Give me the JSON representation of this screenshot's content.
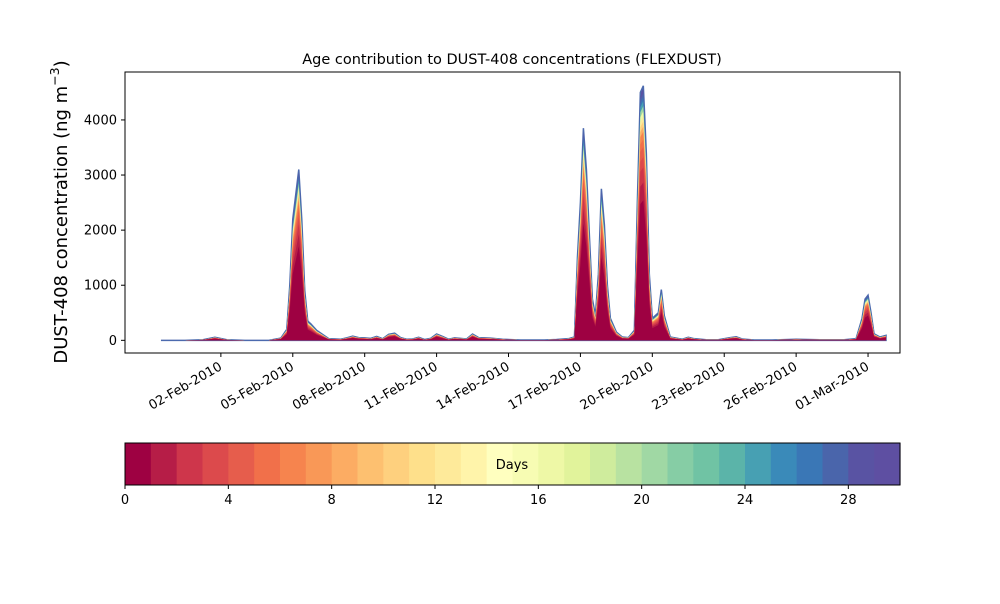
{
  "chart_data": {
    "type": "area",
    "title": "Age contribution to DUST-408 concentrations (FLEXDUST)",
    "ylabel": "DUST-408 concentration (ng m",
    "ylabel_sup": "−3",
    "ylabel_close": ")",
    "ylim": [
      -230,
      4870
    ],
    "yticks": [
      0,
      1000,
      2000,
      3000,
      4000
    ],
    "xlim": [
      "2010-01-29T00:00",
      "2010-03-02T08:00"
    ],
    "xticks": [
      "02-Feb-2010",
      "05-Feb-2010",
      "08-Feb-2010",
      "11-Feb-2010",
      "14-Feb-2010",
      "17-Feb-2010",
      "20-Feb-2010",
      "23-Feb-2010",
      "26-Feb-2010",
      "01-Mar-2010"
    ],
    "xtick_dates": [
      "2010-02-02",
      "2010-02-05",
      "2010-02-08",
      "2010-02-11",
      "2010-02-14",
      "2010-02-17",
      "2010-02-20",
      "2010-02-23",
      "2010-02-26",
      "2010-03-01"
    ],
    "grid": false,
    "series": [
      {
        "colorscale_days": 30,
        "points": [
          [
            "2010-01-30T12:00",
            0
          ],
          [
            "2010-01-31T12:00",
            0
          ],
          [
            "2010-02-01T06:00",
            10
          ],
          [
            "2010-02-01T18:00",
            55
          ],
          [
            "2010-02-02T06:00",
            10
          ],
          [
            "2010-02-03T00:00",
            0
          ],
          [
            "2010-02-04T00:00",
            0
          ],
          [
            "2010-02-04T12:00",
            40
          ],
          [
            "2010-02-04T18:00",
            200
          ],
          [
            "2010-02-04T21:00",
            1000
          ],
          [
            "2010-02-05T00:00",
            2200
          ],
          [
            "2010-02-05T06:00",
            3100
          ],
          [
            "2010-02-05T09:00",
            2200
          ],
          [
            "2010-02-05T12:00",
            900
          ],
          [
            "2010-02-05T15:00",
            350
          ],
          [
            "2010-02-05T18:00",
            300
          ],
          [
            "2010-02-06T00:00",
            180
          ],
          [
            "2010-02-06T12:00",
            30
          ],
          [
            "2010-02-07T00:00",
            20
          ],
          [
            "2010-02-07T06:00",
            45
          ],
          [
            "2010-02-07T12:00",
            75
          ],
          [
            "2010-02-07T18:00",
            50
          ],
          [
            "2010-02-08T00:00",
            45
          ],
          [
            "2010-02-08T06:00",
            35
          ],
          [
            "2010-02-08T12:00",
            70
          ],
          [
            "2010-02-08T18:00",
            30
          ],
          [
            "2010-02-09T00:00",
            110
          ],
          [
            "2010-02-09T06:00",
            130
          ],
          [
            "2010-02-09T12:00",
            50
          ],
          [
            "2010-02-09T18:00",
            20
          ],
          [
            "2010-02-10T00:00",
            25
          ],
          [
            "2010-02-10T06:00",
            55
          ],
          [
            "2010-02-10T12:00",
            15
          ],
          [
            "2010-02-10T18:00",
            35
          ],
          [
            "2010-02-11T00:00",
            115
          ],
          [
            "2010-02-11T06:00",
            70
          ],
          [
            "2010-02-11T12:00",
            20
          ],
          [
            "2010-02-11T18:00",
            45
          ],
          [
            "2010-02-12T00:00",
            35
          ],
          [
            "2010-02-12T06:00",
            25
          ],
          [
            "2010-02-12T12:00",
            115
          ],
          [
            "2010-02-12T18:00",
            50
          ],
          [
            "2010-02-13T06:00",
            40
          ],
          [
            "2010-02-13T18:00",
            20
          ],
          [
            "2010-02-14T12:00",
            5
          ],
          [
            "2010-02-15T12:00",
            5
          ],
          [
            "2010-02-16T00:00",
            15
          ],
          [
            "2010-02-16T12:00",
            30
          ],
          [
            "2010-02-16T18:00",
            60
          ],
          [
            "2010-02-16T21:00",
            1500
          ],
          [
            "2010-02-17T00:00",
            2500
          ],
          [
            "2010-02-17T03:00",
            3850
          ],
          [
            "2010-02-17T06:00",
            3100
          ],
          [
            "2010-02-17T09:00",
            1900
          ],
          [
            "2010-02-17T12:00",
            750
          ],
          [
            "2010-02-17T15:00",
            450
          ],
          [
            "2010-02-17T18:00",
            1200
          ],
          [
            "2010-02-17T21:00",
            2750
          ],
          [
            "2010-02-18T00:00",
            2100
          ],
          [
            "2010-02-18T03:00",
            1000
          ],
          [
            "2010-02-18T06:00",
            400
          ],
          [
            "2010-02-18T12:00",
            150
          ],
          [
            "2010-02-18T18:00",
            60
          ],
          [
            "2010-02-19T00:00",
            50
          ],
          [
            "2010-02-19T06:00",
            180
          ],
          [
            "2010-02-19T09:00",
            2500
          ],
          [
            "2010-02-19T12:00",
            4500
          ],
          [
            "2010-02-19T15:00",
            4620
          ],
          [
            "2010-02-19T18:00",
            3400
          ],
          [
            "2010-02-19T21:00",
            1200
          ],
          [
            "2010-02-20T00:00",
            400
          ],
          [
            "2010-02-20T06:00",
            500
          ],
          [
            "2010-02-20T09:00",
            920
          ],
          [
            "2010-02-20T12:00",
            450
          ],
          [
            "2010-02-20T18:00",
            60
          ],
          [
            "2010-02-21T06:00",
            20
          ],
          [
            "2010-02-21T12:00",
            55
          ],
          [
            "2010-02-21T18:00",
            30
          ],
          [
            "2010-02-22T06:00",
            10
          ],
          [
            "2010-02-22T18:00",
            10
          ],
          [
            "2010-02-23T06:00",
            50
          ],
          [
            "2010-02-23T12:00",
            65
          ],
          [
            "2010-02-23T18:00",
            25
          ],
          [
            "2010-02-24T06:00",
            5
          ],
          [
            "2010-02-25T00:00",
            5
          ],
          [
            "2010-02-26T00:00",
            20
          ],
          [
            "2010-02-27T00:00",
            10
          ],
          [
            "2010-02-28T00:00",
            10
          ],
          [
            "2010-02-28T12:00",
            30
          ],
          [
            "2010-02-28T18:00",
            400
          ],
          [
            "2010-02-28T21:00",
            750
          ],
          [
            "2010-03-01T00:00",
            820
          ],
          [
            "2010-03-01T03:00",
            500
          ],
          [
            "2010-03-01T06:00",
            120
          ],
          [
            "2010-03-01T12:00",
            60
          ],
          [
            "2010-03-01T18:00",
            90
          ]
        ]
      }
    ],
    "colorbar": {
      "label": "Days",
      "min": 0,
      "max": 30,
      "ticks": [
        0,
        4,
        8,
        12,
        16,
        20,
        24,
        28
      ],
      "colors": [
        "#9e0142",
        "#b61d47",
        "#ce364b",
        "#dc4a4c",
        "#e65d4c",
        "#f1704a",
        "#f6844e",
        "#f99857",
        "#fcac63",
        "#fdc070",
        "#fed07e",
        "#fee08b",
        "#feea9a",
        "#fff4aa",
        "#ffffbf",
        "#f7fcb3",
        "#eef8a6",
        "#e1f39b",
        "#cfec9d",
        "#b8e2a1",
        "#a0d8a4",
        "#86cda5",
        "#70c3a4",
        "#5bb4a9",
        "#47a0b3",
        "#3a8ab9",
        "#3a77b6",
        "#4a65ab",
        "#5953a3",
        "#5e4fa2"
      ]
    }
  }
}
